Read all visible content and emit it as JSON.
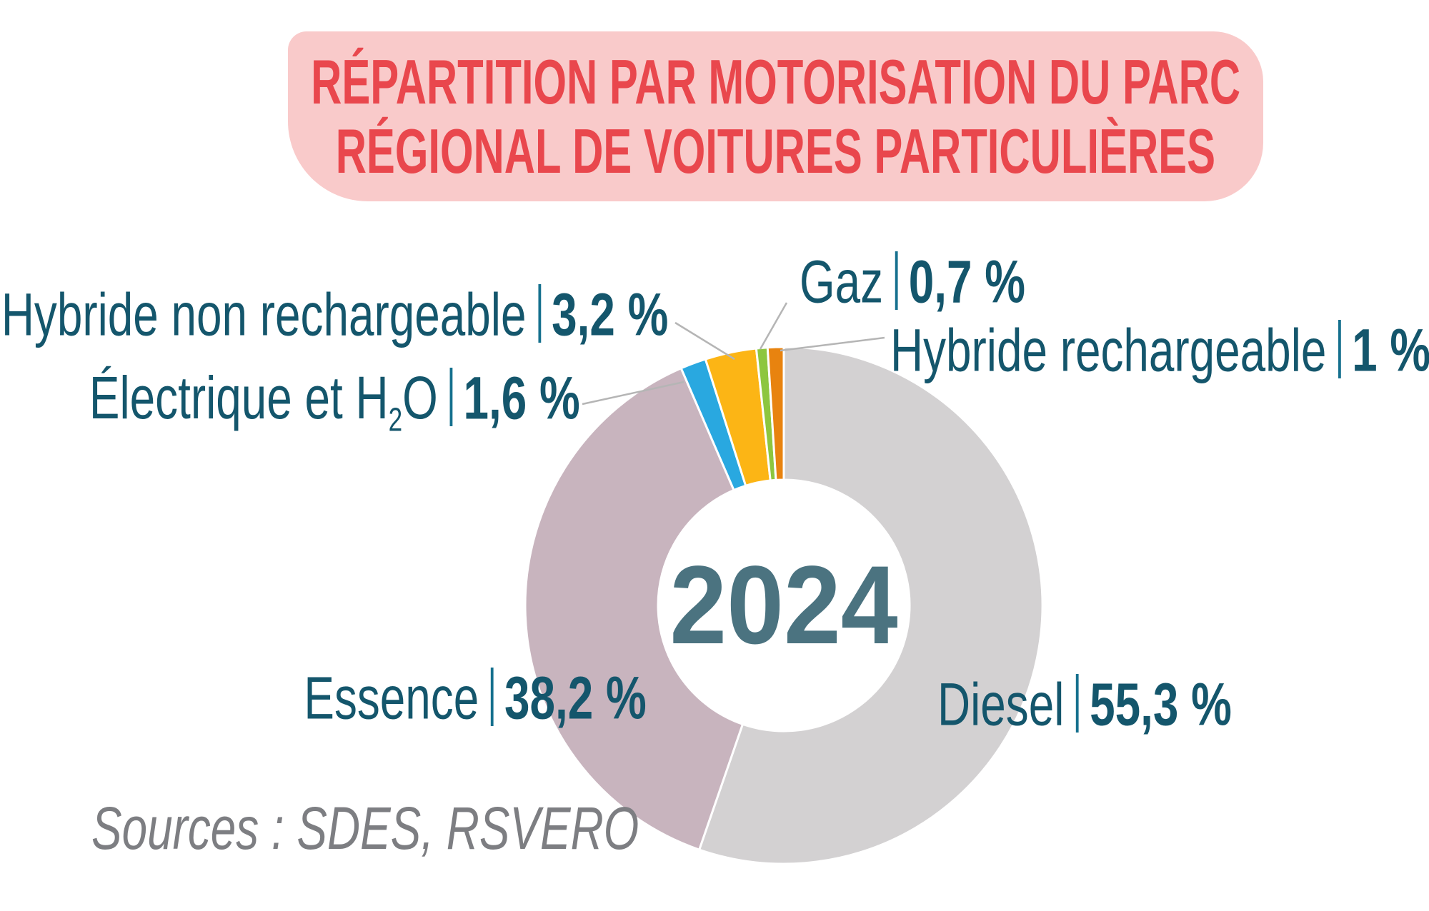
{
  "title": {
    "line1": "RÉPARTITION PAR MOTORISATION DU PARC",
    "line2": "RÉGIONAL DE VOITURES PARTICULIÈRES"
  },
  "center_year": "2024",
  "source_note": "Sources : SDES, RSVERO",
  "colors": {
    "banner_background": "#f9caca",
    "banner_text": "#e9474d",
    "label_text": "#14566c",
    "center_year_text": "#4b7380",
    "source_text": "#7d7e82",
    "leader_line": "#b5b5b5",
    "slice_gap": "#ffffff"
  },
  "chart_data": {
    "type": "pie",
    "subtype": "donut",
    "title": "Répartition par motorisation du parc régional de voitures particulières",
    "year_label": "2024",
    "unit": "%",
    "start_angle_deg": 0,
    "clockwise": true,
    "legend_position": "callout-labels-around-donut",
    "slices": [
      {
        "label": "Diesel",
        "value": 55.3,
        "value_text": "55,3 %",
        "color": "#d3d1d2"
      },
      {
        "label": "Essence",
        "value": 38.2,
        "value_text": "38,2 %",
        "color": "#c8b4be"
      },
      {
        "label": "Électrique et H2O",
        "label_prefix": "Électrique et H",
        "label_sub": "2",
        "label_suffix": "O",
        "value": 1.6,
        "value_text": "1,6 %",
        "color": "#29a8e0"
      },
      {
        "label": "Hybride non rechargeable",
        "value": 3.2,
        "value_text": "3,2 %",
        "color": "#fcb515"
      },
      {
        "label": "Gaz",
        "value": 0.7,
        "value_text": "0,7 %",
        "color": "#8dc63f"
      },
      {
        "label": "Hybride rechargeable",
        "value": 1.0,
        "value_text": "1 %",
        "color": "#e8830f"
      }
    ]
  }
}
